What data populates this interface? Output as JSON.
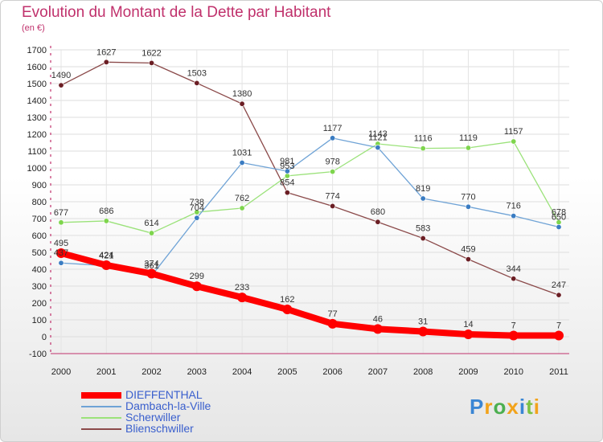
{
  "header": {
    "title": "Evolution du Montant de la Dette par Habitant",
    "subtitle": "(en €)"
  },
  "brand": {
    "letters": [
      "P",
      "r",
      "o",
      "x",
      "i",
      "t",
      "i"
    ],
    "colors": [
      "#3a86d4",
      "#f2a31b",
      "#4caf50",
      "#f2a31b",
      "#3a86d4",
      "#7cc242",
      "#f2a31b"
    ]
  },
  "chart_data": {
    "type": "line",
    "title": "Evolution du Montant de la Dette par Habitant",
    "subtitle": "(en €)",
    "x": [
      "2000",
      "2001",
      "2002",
      "2003",
      "2004",
      "2005",
      "2006",
      "2007",
      "2008",
      "2009",
      "2010",
      "2011"
    ],
    "ylim": [
      -100,
      1700
    ],
    "yticks": [
      -100,
      0,
      100,
      200,
      300,
      400,
      500,
      600,
      700,
      800,
      900,
      1000,
      1100,
      1200,
      1300,
      1400,
      1500,
      1600,
      1700
    ],
    "grid": true,
    "legend": "bottom-left",
    "series": [
      {
        "name": "DIEFFENTHAL",
        "color": "#ff0000",
        "marker": "#ff0000",
        "width": 8,
        "values": [
          495,
          424,
          374,
          299,
          233,
          162,
          77,
          46,
          31,
          14,
          7,
          7
        ]
      },
      {
        "name": "Dambach-la-Ville",
        "color": "#6fa3d6",
        "marker": "#3a7cc2",
        "width": 1.3,
        "values": [
          437,
          421,
          361,
          704,
          1031,
          981,
          1177,
          1121,
          819,
          770,
          716,
          650
        ]
      },
      {
        "name": "Scherwiller",
        "color": "#9be27a",
        "marker": "#7ed54d",
        "width": 1.3,
        "values": [
          677,
          686,
          614,
          738,
          762,
          953,
          978,
          1143,
          1116,
          1119,
          1157,
          678
        ]
      },
      {
        "name": "Blienschwiller",
        "color": "#8b4a4a",
        "marker": "#6b1e24",
        "width": 1.3,
        "values": [
          1490,
          1627,
          1622,
          1503,
          1380,
          854,
          774,
          680,
          583,
          459,
          344,
          247
        ]
      }
    ]
  }
}
